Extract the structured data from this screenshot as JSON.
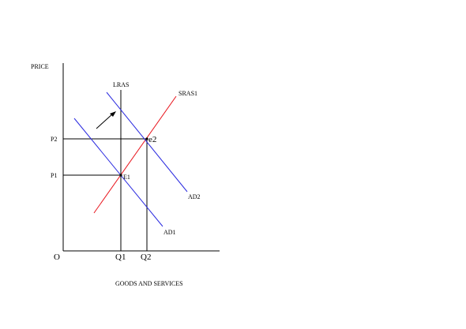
{
  "axes": {
    "y_label": "PRICE",
    "x_label": "GOODS AND SERVICES",
    "origin_label": "O"
  },
  "curves": {
    "lras": "LRAS",
    "sras": "SRAS1",
    "ad1": "AD1",
    "ad2": "AD2"
  },
  "points": {
    "e1": "E1",
    "e2": "e2"
  },
  "price_levels": {
    "p1": "P1",
    "p2": "P2"
  },
  "quantities": {
    "q1": "Q1",
    "q2": "Q2"
  },
  "colors": {
    "axis": "#000000",
    "lras": "#000000",
    "sras": "#e8141c",
    "ad": "#2a2ae0",
    "guides": "#000000"
  }
}
